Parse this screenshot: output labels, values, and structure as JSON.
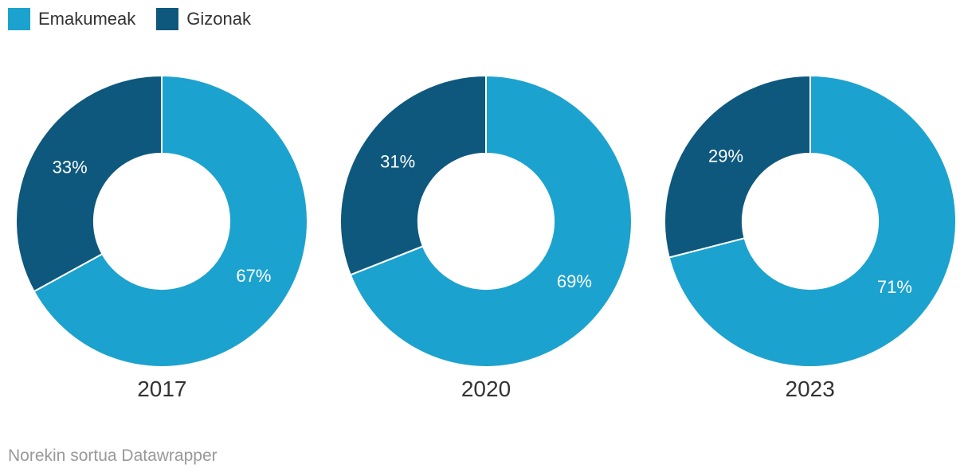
{
  "legend": {
    "items": [
      {
        "label": "Emakumeak",
        "color": "#1ca2cf"
      },
      {
        "label": "Gizonak",
        "color": "#0e587e"
      }
    ]
  },
  "footer": {
    "prefix": "Norekin sortua ",
    "link_label": "Datawrapper"
  },
  "colors": {
    "series_light": "#1ca2cf",
    "series_dark": "#0e587e",
    "slice_label": "#ffffff",
    "text": "#333333",
    "footer_text": "#999999",
    "slice_divider": "#ffffff"
  },
  "chart_data": [
    {
      "type": "pie",
      "variant": "donut",
      "title": "2017",
      "categories": [
        "Emakumeak",
        "Gizonak"
      ],
      "values": [
        67,
        33
      ],
      "value_labels": [
        "67%",
        "33%"
      ],
      "colors": [
        "#1ca2cf",
        "#0e587e"
      ],
      "start_angle_deg": 0,
      "direction": "clockwise",
      "inner_radius_ratio": 0.465,
      "legend_position": "top-left"
    },
    {
      "type": "pie",
      "variant": "donut",
      "title": "2020",
      "categories": [
        "Emakumeak",
        "Gizonak"
      ],
      "values": [
        69,
        31
      ],
      "value_labels": [
        "69%",
        "31%"
      ],
      "colors": [
        "#1ca2cf",
        "#0e587e"
      ],
      "start_angle_deg": 0,
      "direction": "clockwise",
      "inner_radius_ratio": 0.465,
      "legend_position": "top-left"
    },
    {
      "type": "pie",
      "variant": "donut",
      "title": "2023",
      "categories": [
        "Emakumeak",
        "Gizonak"
      ],
      "values": [
        71,
        29
      ],
      "value_labels": [
        "71%",
        "29%"
      ],
      "colors": [
        "#1ca2cf",
        "#0e587e"
      ],
      "start_angle_deg": 0,
      "direction": "clockwise",
      "inner_radius_ratio": 0.465,
      "legend_position": "top-left"
    }
  ]
}
